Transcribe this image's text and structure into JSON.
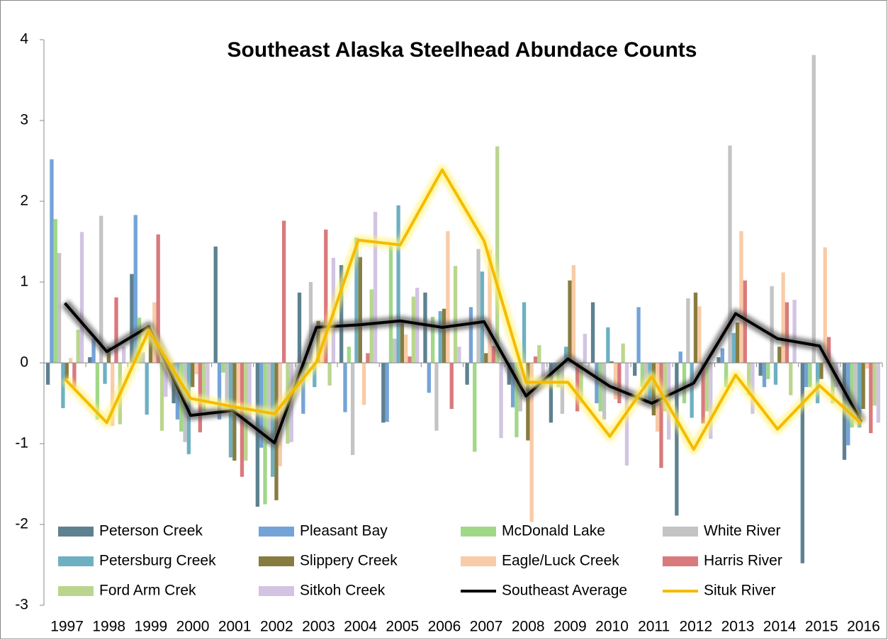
{
  "chart_data": {
    "type": "bar_line",
    "title": "Southeast Alaska Steelhead Abundace Counts",
    "categories": [
      "1997",
      "1998",
      "1999",
      "2000",
      "2001",
      "2002",
      "2003",
      "2004",
      "2005",
      "2006",
      "2007",
      "2008",
      "2009",
      "2010",
      "2011",
      "2012",
      "2013",
      "2014",
      "2015",
      "2016"
    ],
    "ylim": [
      -3,
      4
    ],
    "yticks": [
      -3,
      -2,
      -1,
      0,
      1,
      2,
      3,
      4
    ],
    "grid": false,
    "series": [
      {
        "name": "Peterson Creek",
        "color": "#5d8190",
        "kind": "bar",
        "values": [
          -0.27,
          0.07,
          1.1,
          -0.5,
          1.44,
          -1.78,
          0.87,
          1.21,
          -0.74,
          0.87,
          -0.27,
          -0.27,
          -0.74,
          0.75,
          -0.16,
          -1.89,
          0.07,
          -0.16,
          -2.48,
          -1.2
        ]
      },
      {
        "name": "Pleasant Bay",
        "color": "#74a3d8",
        "kind": "bar",
        "values": [
          2.52,
          0.3,
          1.83,
          -0.7,
          -0.7,
          -1.05,
          -0.63,
          -0.61,
          -0.73,
          -0.37,
          0.69,
          -0.55,
          -0.1,
          -0.5,
          0.69,
          0.14,
          0.18,
          -0.3,
          -0.3,
          -1.02
        ]
      },
      {
        "name": "McDonald Lake",
        "color": "#a0d888",
        "kind": "bar",
        "values": [
          1.78,
          -0.7,
          0.56,
          -0.85,
          -0.12,
          -1.75,
          -0.1,
          0.2,
          1.45,
          0.57,
          -1.1,
          -0.92,
          -0.3,
          -0.6,
          -0.3,
          -0.5,
          -0.3,
          -0.2,
          -0.3,
          -0.8
        ]
      },
      {
        "name": "White River",
        "color": "#c4c4c4",
        "kind": "bar",
        "values": [
          1.36,
          1.82,
          0.13,
          -0.98,
          -0.5,
          -1.0,
          1.0,
          -1.14,
          0.3,
          -0.84,
          1.41,
          -0.6,
          -0.63,
          -0.7,
          -0.5,
          0.8,
          2.69,
          0.95,
          3.81,
          -0.6
        ]
      },
      {
        "name": "Petersburg Creek",
        "color": "#6eb0c2",
        "kind": "bar",
        "values": [
          -0.56,
          -0.26,
          -0.64,
          -1.13,
          -1.17,
          -1.41,
          -0.3,
          1.55,
          1.95,
          0.64,
          1.13,
          0.75,
          0.2,
          0.44,
          -0.5,
          -0.68,
          0.37,
          -0.27,
          -0.5,
          -0.8
        ]
      },
      {
        "name": "Slippery Creek",
        "color": "#877c40",
        "kind": "bar",
        "values": [
          -0.2,
          0.2,
          0.4,
          -0.3,
          -1.21,
          -1.7,
          0.52,
          1.31,
          0.5,
          0.67,
          0.12,
          -0.96,
          1.02,
          0.02,
          -0.65,
          0.87,
          0.5,
          0.2,
          -0.2,
          -0.57
        ]
      },
      {
        "name": "Eagle/Luck Creek",
        "color": "#f9cba6",
        "kind": "bar",
        "values": [
          0.06,
          -0.78,
          0.75,
          -0.14,
          -0.5,
          -1.28,
          0.5,
          -0.52,
          0.35,
          1.63,
          1.4,
          -1.97,
          1.21,
          -0.45,
          -0.85,
          0.7,
          1.63,
          1.12,
          1.43,
          -0.07
        ]
      },
      {
        "name": "Harris River",
        "color": "#d97a7c",
        "kind": "bar",
        "values": [
          -0.3,
          0.81,
          1.59,
          -0.86,
          -1.41,
          1.76,
          1.65,
          0.12,
          0.08,
          -0.57,
          0.21,
          0.08,
          -0.6,
          -0.5,
          -1.3,
          -0.75,
          1.02,
          0.75,
          0.32,
          -0.87
        ]
      },
      {
        "name": "Ford Arm Crek",
        "color": "#bad68e",
        "kind": "bar",
        "values": [
          0.41,
          -0.76,
          -0.84,
          -0.6,
          -1.21,
          -1.0,
          -0.28,
          0.91,
          0.82,
          1.2,
          2.68,
          0.22,
          -0.5,
          0.24,
          -0.6,
          -0.6,
          -0.4,
          -0.4,
          -0.5,
          -0.53
        ]
      },
      {
        "name": "Sitkoh Creek",
        "color": "#d2c4e2",
        "kind": "bar",
        "values": [
          1.62,
          0.2,
          -0.42,
          -0.5,
          -0.7,
          -0.98,
          1.3,
          1.87,
          0.93,
          0.2,
          -0.93,
          -0.2,
          0.36,
          -1.27,
          -0.95,
          -0.94,
          -0.63,
          0.78,
          -0.3,
          -0.74
        ]
      },
      {
        "name": "Southeast Average",
        "color": "#000000",
        "kind": "line",
        "values": [
          0.74,
          0.14,
          0.45,
          -0.65,
          -0.59,
          -0.99,
          0.44,
          0.47,
          0.52,
          0.44,
          0.51,
          -0.41,
          0.05,
          -0.29,
          -0.5,
          -0.25,
          0.61,
          0.3,
          0.21,
          -0.73
        ]
      },
      {
        "name": "Situk River",
        "color": "#f5bb00",
        "kind": "line",
        "values": [
          -0.2,
          -0.74,
          0.4,
          -0.44,
          -0.54,
          -0.63,
          0.01,
          1.52,
          1.46,
          2.39,
          1.51,
          -0.24,
          -0.24,
          -0.91,
          -0.17,
          -1.07,
          -0.15,
          -0.82,
          -0.28,
          -0.75
        ]
      }
    ]
  }
}
